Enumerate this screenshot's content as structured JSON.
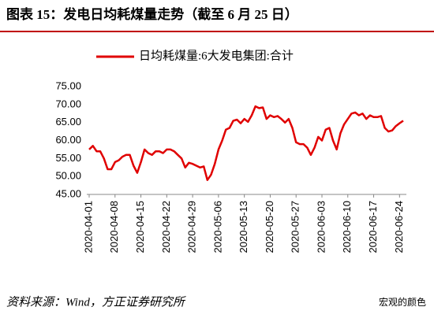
{
  "chart_data": {
    "type": "line",
    "title": "图表 15：发电日均耗煤量走势（截至 6 月 25 日）",
    "source": "资料来源：Wind，方正证券研究所",
    "watermark": "宏观的颜色",
    "x": [
      "2020-04-01",
      "2020-04-02",
      "2020-04-03",
      "2020-04-04",
      "2020-04-05",
      "2020-04-06",
      "2020-04-07",
      "2020-04-08",
      "2020-04-09",
      "2020-04-10",
      "2020-04-11",
      "2020-04-12",
      "2020-04-13",
      "2020-04-14",
      "2020-04-15",
      "2020-04-16",
      "2020-04-17",
      "2020-04-18",
      "2020-04-19",
      "2020-04-20",
      "2020-04-21",
      "2020-04-22",
      "2020-04-23",
      "2020-04-24",
      "2020-04-25",
      "2020-04-26",
      "2020-04-27",
      "2020-04-28",
      "2020-04-29",
      "2020-04-30",
      "2020-05-01",
      "2020-05-02",
      "2020-05-03",
      "2020-05-04",
      "2020-05-05",
      "2020-05-06",
      "2020-05-07",
      "2020-05-08",
      "2020-05-09",
      "2020-05-10",
      "2020-05-11",
      "2020-05-12",
      "2020-05-13",
      "2020-05-14",
      "2020-05-15",
      "2020-05-16",
      "2020-05-17",
      "2020-05-18",
      "2020-05-19",
      "2020-05-20",
      "2020-05-21",
      "2020-05-22",
      "2020-05-23",
      "2020-05-24",
      "2020-05-25",
      "2020-05-26",
      "2020-05-27",
      "2020-05-28",
      "2020-05-29",
      "2020-05-30",
      "2020-05-31",
      "2020-06-01",
      "2020-06-02",
      "2020-06-03",
      "2020-06-04",
      "2020-06-05",
      "2020-06-06",
      "2020-06-07",
      "2020-06-08",
      "2020-06-09",
      "2020-06-10",
      "2020-06-11",
      "2020-06-12",
      "2020-06-13",
      "2020-06-14",
      "2020-06-15",
      "2020-06-16",
      "2020-06-17",
      "2020-06-18",
      "2020-06-19",
      "2020-06-20",
      "2020-06-21",
      "2020-06-22",
      "2020-06-23",
      "2020-06-24",
      "2020-06-25"
    ],
    "series": [
      {
        "name": "日均耗煤量:6大发电集团:合计",
        "color": "#e00000",
        "values": [
          57.5,
          58.5,
          57,
          57,
          55,
          52,
          52,
          54,
          54.5,
          55.5,
          56,
          56,
          53,
          51,
          54,
          57.5,
          56.5,
          56,
          57,
          57,
          56.5,
          57.5,
          57.5,
          57,
          56,
          55,
          52.5,
          53.8,
          53.5,
          53,
          52.5,
          52.8,
          49,
          50.5,
          53.5,
          57.5,
          60,
          63,
          63.5,
          65.5,
          65.8,
          64.8,
          66,
          65.2,
          67,
          69.5,
          69,
          69.2,
          66,
          67,
          66.5,
          66.8,
          66,
          65,
          66,
          63.5,
          59.5,
          59,
          59,
          58,
          56,
          58,
          61,
          60,
          63,
          63.5,
          60,
          57.5,
          62,
          64.5,
          66,
          67.5,
          67.8,
          67,
          67.5,
          66,
          67,
          66.5,
          66.5,
          66.8,
          63.5,
          62.5,
          62.8,
          64,
          64.8,
          65.5
        ]
      }
    ],
    "xticks": [
      "2020-04-01",
      "2020-04-08",
      "2020-04-15",
      "2020-04-22",
      "2020-04-29",
      "2020-05-06",
      "2020-05-13",
      "2020-05-20",
      "2020-05-27",
      "2020-06-03",
      "2020-06-10",
      "2020-06-17",
      "2020-06-24"
    ],
    "ylim": [
      45,
      75
    ],
    "yticks": [
      {
        "value": 45,
        "label": "45.00"
      },
      {
        "value": 50,
        "label": "50.00"
      },
      {
        "value": 55,
        "label": "55.00"
      },
      {
        "value": 60,
        "label": "60.00"
      },
      {
        "value": 65,
        "label": "65.00"
      },
      {
        "value": 70,
        "label": "70.00"
      },
      {
        "value": 75,
        "label": "75.00"
      }
    ],
    "legend": "top"
  }
}
